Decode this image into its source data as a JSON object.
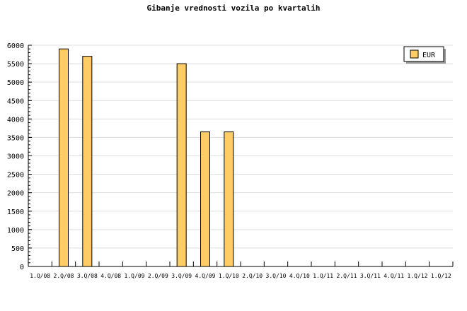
{
  "chart_data": {
    "type": "bar",
    "title": "Gibanje vrednosti vozila po kvartalih",
    "xlabel": "",
    "ylabel": "",
    "ylim": [
      0,
      6000
    ],
    "yticks": [
      0,
      500,
      1000,
      1500,
      2000,
      2500,
      3000,
      3500,
      4000,
      4500,
      5000,
      5500,
      6000
    ],
    "grid": true,
    "legend_position": "top-right",
    "categories": [
      "1.Q/08",
      "2.Q/08",
      "3.Q/08",
      "4.Q/08",
      "1.Q/09",
      "2.Q/09",
      "3.Q/09",
      "4.Q/09",
      "1.Q/10",
      "2.Q/10",
      "3.Q/10",
      "4.Q/10",
      "1.Q/11",
      "2.Q/11",
      "3.Q/11",
      "4.Q/11",
      "1.Q/12",
      "1.Q/12"
    ],
    "series": [
      {
        "name": "EUR",
        "color": "#ffcc66",
        "values": [
          0,
          5900,
          5700,
          0,
          0,
          0,
          5500,
          3650,
          3650,
          0,
          0,
          0,
          0,
          0,
          0,
          0,
          0,
          0
        ]
      }
    ]
  }
}
